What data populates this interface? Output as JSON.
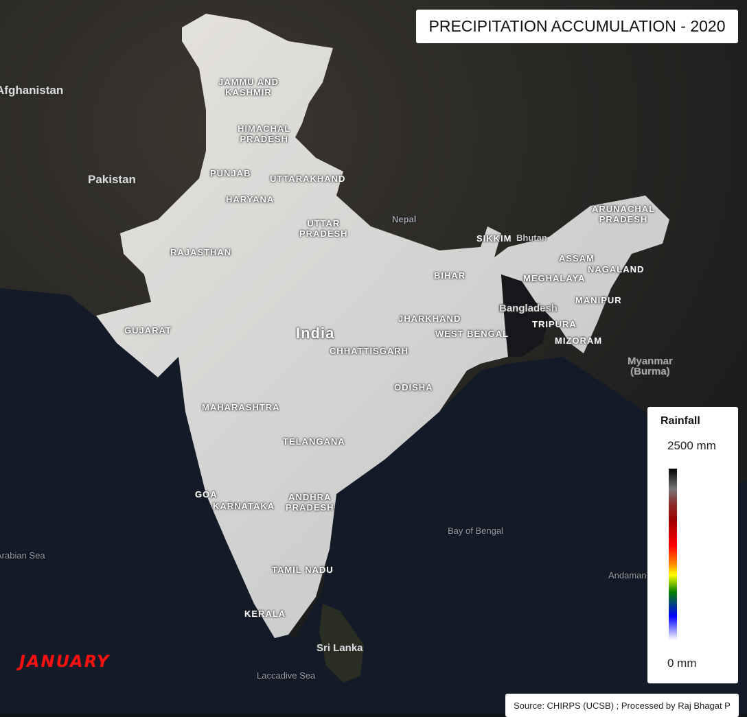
{
  "title": "PRECIPITATION ACCUMULATION - 2020",
  "month": "JANUARY",
  "source": "Source: CHIRPS (UCSB) ; Processed by Raj Bhagat P",
  "legend": {
    "title": "Rainfall",
    "max": "2500 mm",
    "min": "0 mm",
    "value_range_mm": [
      0,
      2500
    ],
    "palette": [
      "#ffffff",
      "#0000ff",
      "#008000",
      "#ffff00",
      "#ff8000",
      "#ff0000",
      "#a00000",
      "#777777",
      "#000000"
    ]
  },
  "country_label": "India",
  "states": [
    "JAMMU AND\nKASHMIR",
    "HIMACHAL\nPRADESH",
    "PUNJAB",
    "UTTARAKHAND",
    "HARYANA",
    "UTTAR\nPRADESH",
    "RAJASTHAN",
    "BIHAR",
    "SIKKIM",
    "ARUNACHAL\nPRADESH",
    "ASSAM",
    "NAGALAND",
    "MEGHALAYA",
    "MANIPUR",
    "TRIPURA",
    "MIZORAM",
    "JHARKHAND",
    "WEST BENGAL",
    "GUJARAT",
    "CHHATTISGARH",
    "ODISHA",
    "MAHARASHTRA",
    "TELANGANA",
    "GOA",
    "KARNATAKA",
    "ANDHRA\nPRADESH",
    "TAMIL NADU",
    "KERALA"
  ],
  "neighbors": [
    "Afghanistan",
    "Pakistan",
    "Nepal",
    "Bhutan",
    "Bangladesh",
    "Myanmar\n(Burma)",
    "Sri Lanka"
  ],
  "water": [
    "Bay of Bengal",
    "Arabian Sea",
    "Laccadive Sea",
    "Andaman"
  ]
}
